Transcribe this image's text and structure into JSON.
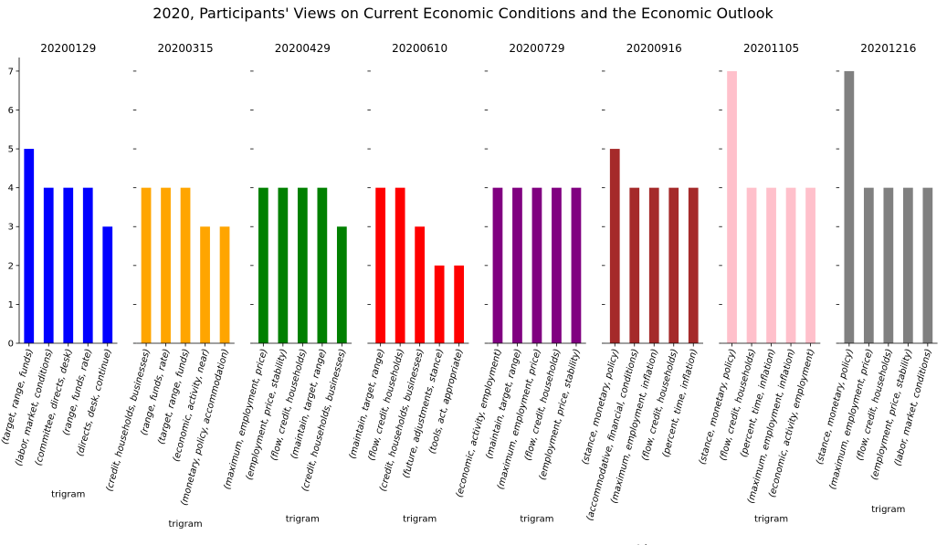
{
  "title": "2020, Participants' Views on Current Economic Conditions and the Economic Outlook",
  "chart_data": {
    "type": "bar",
    "title": "2020, Participants' Views on Current Economic Conditions and the Economic Outlook",
    "ylim": [
      0,
      7.35
    ],
    "yticks": [
      0,
      1,
      2,
      3,
      4,
      5,
      6,
      7
    ],
    "xlabel": "trigram",
    "grid": false,
    "panels": [
      {
        "title": "20200129",
        "color": "#0000ff",
        "categories": [
          "(target, range, funds)",
          "(labor, market, conditions)",
          "(committee, directs, desk)",
          "(range, funds, rate)",
          "(directs, desk, continue)"
        ],
        "values": [
          5,
          4,
          4,
          4,
          3
        ]
      },
      {
        "title": "20200315",
        "color": "#ffa500",
        "categories": [
          "(credit, households, businesses)",
          "(range, funds, rate)",
          "(target, range, funds)",
          "(economic, activity, near)",
          "(monetary, policy, accommodation)"
        ],
        "values": [
          4,
          4,
          4,
          3,
          3
        ]
      },
      {
        "title": "20200429",
        "color": "#008000",
        "categories": [
          "(maximum, employment, price)",
          "(employment, price, stability)",
          "(flow, credit, households)",
          "(maintain, target, range)",
          "(credit, households, businesses)"
        ],
        "values": [
          4,
          4,
          4,
          4,
          3
        ]
      },
      {
        "title": "20200610",
        "color": "#ff0000",
        "categories": [
          "(maintain, target, range)",
          "(flow, credit, households)",
          "(credit, households, businesses)",
          "(future, adjustments, stance)",
          "(tools, act, appropriate)"
        ],
        "values": [
          4,
          4,
          3,
          2,
          2
        ]
      },
      {
        "title": "20200729",
        "color": "#800080",
        "categories": [
          "(economic, activity, employment)",
          "(maintain, target, range)",
          "(maximum, employment, price)",
          "(flow, credit, households)",
          "(employment, price, stability)"
        ],
        "values": [
          4,
          4,
          4,
          4,
          4
        ]
      },
      {
        "title": "20200916",
        "color": "#a52a2a",
        "categories": [
          "(stance, monetary, policy)",
          "(accommodative, financial, conditions)",
          "(maximum, employment, inflation)",
          "(flow, credit, households)",
          "(percent, time, inflation)"
        ],
        "values": [
          5,
          4,
          4,
          4,
          4
        ]
      },
      {
        "title": "20201105",
        "color": "#ffc0cb",
        "categories": [
          "(stance, monetary, policy)",
          "(flow, credit, households)",
          "(percent, time, inflation)",
          "(maximum, employment, inflation)",
          "(economic, activity, employment)"
        ],
        "values": [
          7,
          4,
          4,
          4,
          4
        ]
      },
      {
        "title": "20201216",
        "color": "#808080",
        "categories": [
          "(stance, monetary, policy)",
          "(maximum, employment, price)",
          "(flow, credit, households)",
          "(employment, price, stability)",
          "(labor, market, conditions)"
        ],
        "values": [
          7,
          4,
          4,
          4,
          4
        ]
      }
    ]
  }
}
